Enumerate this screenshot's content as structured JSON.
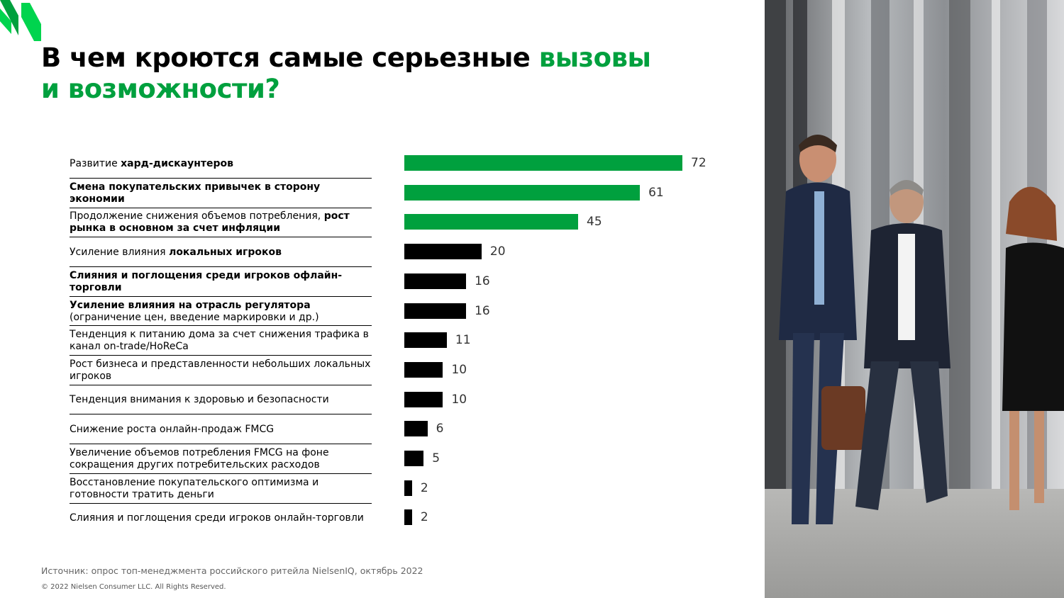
{
  "title": {
    "line1_prefix": "В чем кроются самые серьезные ",
    "line1_highlight": "вызовы",
    "line2_highlight": "и возможности?"
  },
  "colors": {
    "accent": "#00a03e",
    "bar_default": "#000000"
  },
  "chart_data": {
    "type": "bar",
    "orientation": "horizontal",
    "title": "",
    "xlabel": "",
    "ylabel": "",
    "xlim": [
      0,
      72
    ],
    "grid": false,
    "legend": "none",
    "categories": [
      [
        {
          "t": "Развитие ",
          "b": false
        },
        {
          "t": "хард-дискаунтеров",
          "b": true
        }
      ],
      [
        {
          "t": "Смена покупательских привычек в сторону экономии",
          "b": true
        }
      ],
      [
        {
          "t": "Продолжение снижения объемов потребления, ",
          "b": false
        },
        {
          "t": "рост рынка в основном за счет инфляции",
          "b": true
        }
      ],
      [
        {
          "t": "Усиление влияния ",
          "b": false
        },
        {
          "t": "локальных игроков",
          "b": true
        }
      ],
      [
        {
          "t": "Слияния и поглощения среди игроков офлайн-торговли",
          "b": true
        }
      ],
      [
        {
          "t": "Усиление влияния на отрасль регулятора",
          "b": true
        },
        {
          "t": " (ограничение цен, введение маркировки и др.)",
          "b": false
        }
      ],
      [
        {
          "t": "Тенденция к питанию дома за счет снижения трафика в канал on-trade/HoReCa",
          "b": false
        }
      ],
      [
        {
          "t": "Рост бизнеса и представленности небольших локальных игроков",
          "b": false
        }
      ],
      [
        {
          "t": "Тенденция внимания к здоровью и безопасности",
          "b": false
        }
      ],
      [
        {
          "t": "Снижение роста онлайн-продаж FMCG",
          "b": false
        }
      ],
      [
        {
          "t": "Увеличение объемов потребления FMCG на фоне сокращения других потребительских расходов",
          "b": false
        }
      ],
      [
        {
          "t": "Восстановление покупательского оптимизма и готовности тратить деньги",
          "b": false
        }
      ],
      [
        {
          "t": "Слияния и поглощения среди игроков онлайн-торговли",
          "b": false
        }
      ]
    ],
    "values": [
      72,
      61,
      45,
      20,
      16,
      16,
      11,
      10,
      10,
      6,
      5,
      2,
      2
    ],
    "highlighted": [
      true,
      true,
      true,
      false,
      false,
      false,
      false,
      false,
      false,
      false,
      false,
      false,
      false
    ]
  },
  "footer": {
    "source": "Источник: опрос топ-менеджмента российского ритейла NielsenIQ, октябрь 2022",
    "copyright": "© 2022 Nielsen Consumer LLC. All Rights Reserved."
  }
}
